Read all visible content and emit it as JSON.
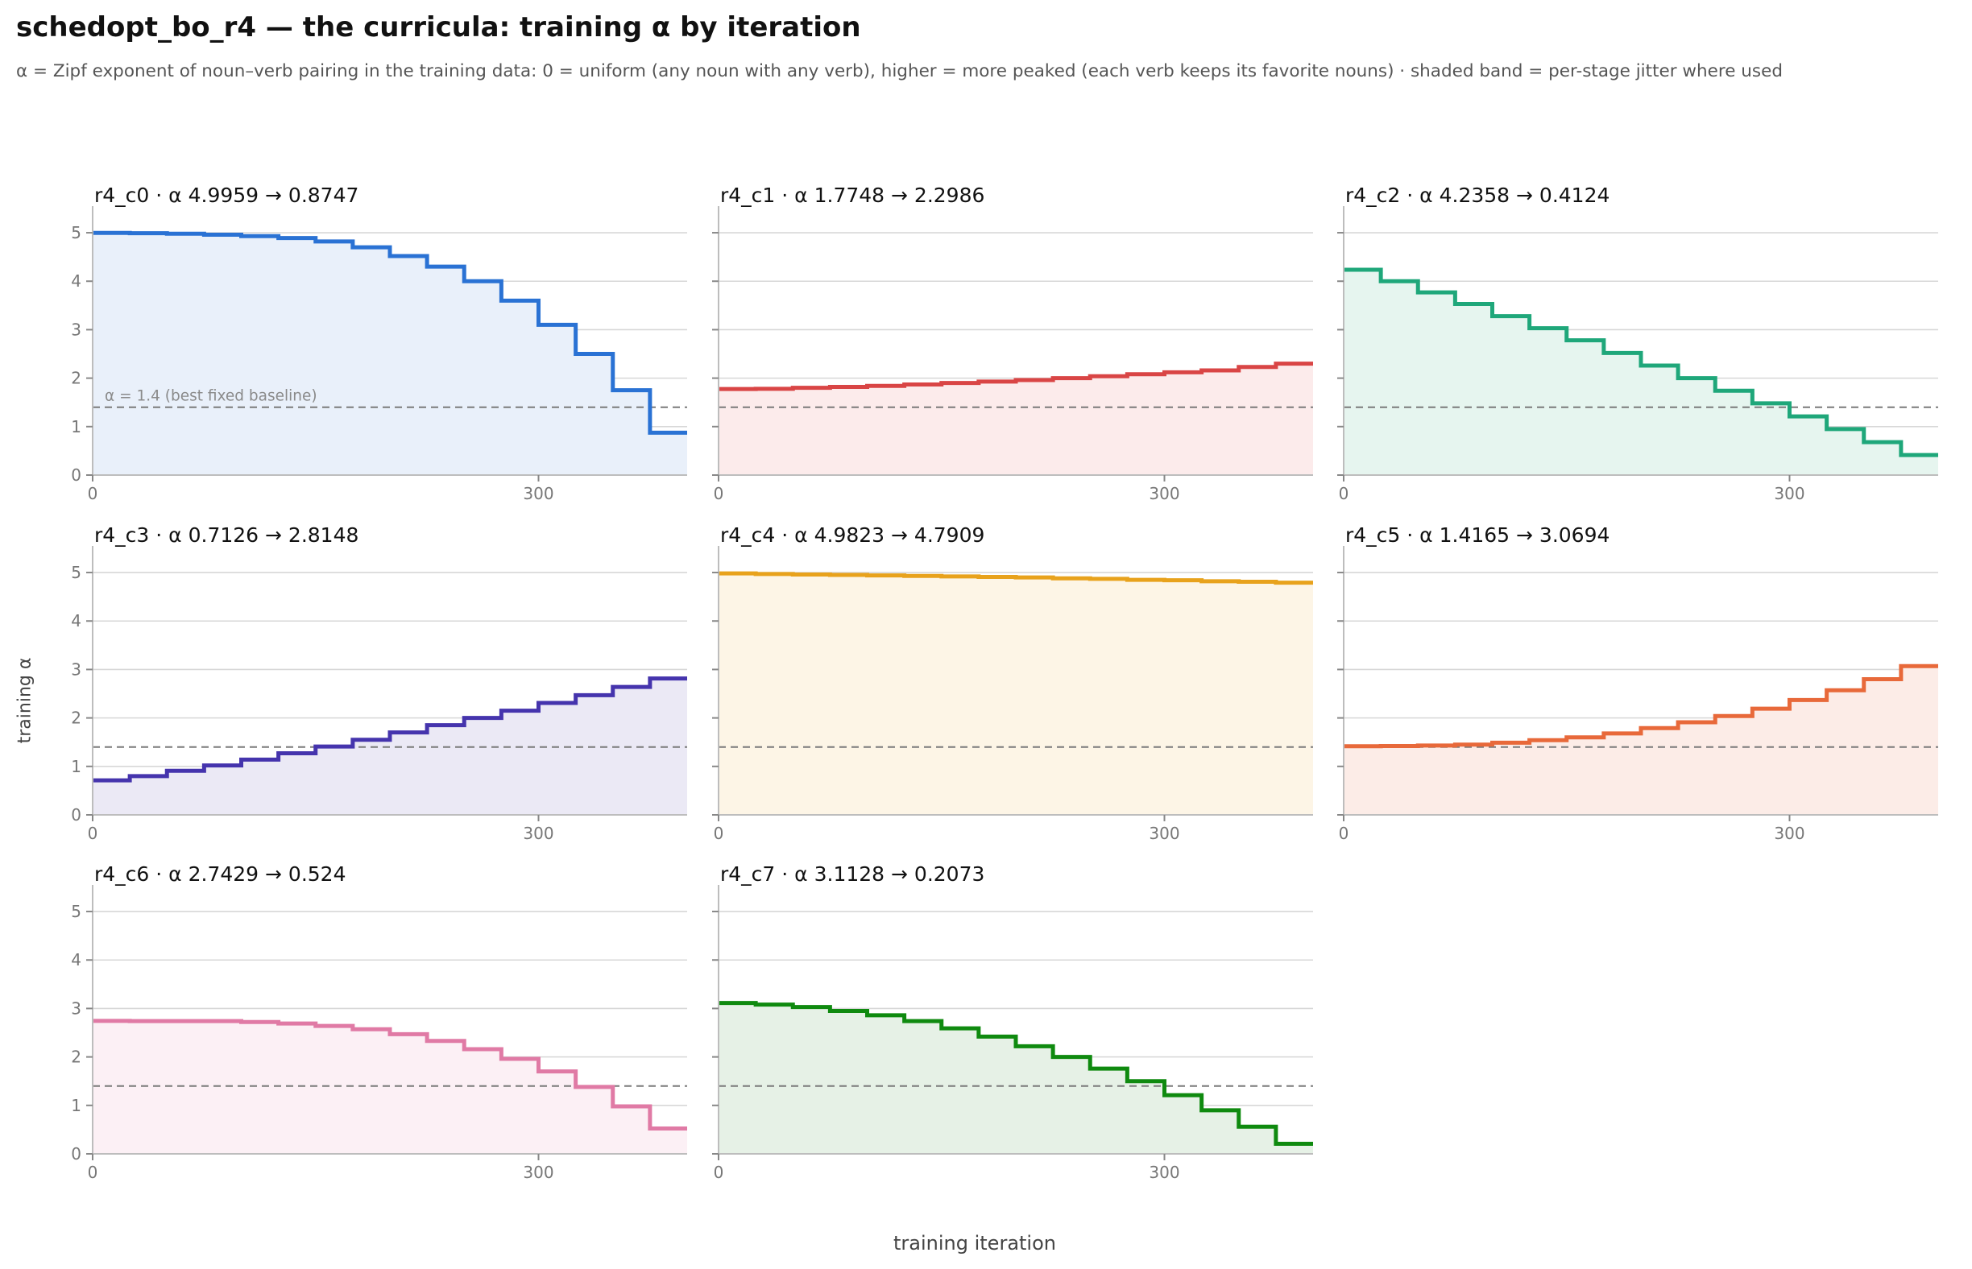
{
  "title": "schedopt_bo_r4 — the curricula: training α by iteration",
  "subtitle": "α = Zipf exponent of noun–verb pairing in the training data: 0 = uniform (any noun with any verb), higher = more peaked (each verb keeps its favorite nouns) · shaded band = per-stage jitter where used",
  "xlabel": "training iteration",
  "ylabel": "training α",
  "baseline": {
    "value": 1.4,
    "label": "α = 1.4 (best fixed baseline)"
  },
  "chart_data": [
    {
      "type": "line",
      "name": "r4_c0",
      "title": "r4_c0   ·   α 4.9959 → 0.8747",
      "color": "#2a72d4",
      "fill": "#e9f0fa",
      "x": [
        0,
        25,
        50,
        75,
        100,
        125,
        150,
        175,
        200,
        225,
        250,
        275,
        300,
        325,
        350,
        375
      ],
      "y": [
        4.9959,
        4.99,
        4.98,
        4.96,
        4.93,
        4.89,
        4.82,
        4.7,
        4.52,
        4.3,
        4.0,
        3.6,
        3.1,
        2.5,
        1.75,
        0.8747
      ]
    },
    {
      "type": "line",
      "name": "r4_c1",
      "title": "r4_c1   ·   α 1.7748 → 2.2986",
      "color": "#d94545",
      "fill": "#fcebeb",
      "x": [
        0,
        25,
        50,
        75,
        100,
        125,
        150,
        175,
        200,
        225,
        250,
        275,
        300,
        325,
        350,
        375
      ],
      "y": [
        1.7748,
        1.78,
        1.8,
        1.82,
        1.84,
        1.87,
        1.9,
        1.93,
        1.96,
        2.0,
        2.04,
        2.08,
        2.12,
        2.16,
        2.23,
        2.2986
      ]
    },
    {
      "type": "line",
      "name": "r4_c2",
      "title": "r4_c2   ·   α 4.2358 → 0.4124",
      "color": "#1fa77a",
      "fill": "#e6f5ef",
      "x": [
        0,
        25,
        50,
        75,
        100,
        125,
        150,
        175,
        200,
        225,
        250,
        275,
        300,
        325,
        350,
        375
      ],
      "y": [
        4.2358,
        4.0,
        3.77,
        3.53,
        3.28,
        3.03,
        2.78,
        2.52,
        2.26,
        2.0,
        1.74,
        1.48,
        1.21,
        0.95,
        0.68,
        0.4124
      ]
    },
    {
      "type": "line",
      "name": "r4_c3",
      "title": "r4_c3   ·   α 0.7126 → 2.8148",
      "color": "#4534ad",
      "fill": "#ebe9f5",
      "x": [
        0,
        25,
        50,
        75,
        100,
        125,
        150,
        175,
        200,
        225,
        250,
        275,
        300,
        325,
        350,
        375
      ],
      "y": [
        0.7126,
        0.8,
        0.91,
        1.02,
        1.14,
        1.27,
        1.41,
        1.55,
        1.7,
        1.85,
        2.0,
        2.15,
        2.31,
        2.47,
        2.64,
        2.8148
      ]
    },
    {
      "type": "line",
      "name": "r4_c4",
      "title": "r4_c4   ·   α 4.9823 → 4.7909",
      "color": "#e8a21c",
      "fill": "#fdf5e6",
      "x": [
        0,
        25,
        50,
        75,
        100,
        125,
        150,
        175,
        200,
        225,
        250,
        275,
        300,
        325,
        350,
        375
      ],
      "y": [
        4.9823,
        4.97,
        4.96,
        4.95,
        4.94,
        4.93,
        4.92,
        4.91,
        4.9,
        4.88,
        4.87,
        4.85,
        4.84,
        4.82,
        4.81,
        4.7909
      ]
    },
    {
      "type": "line",
      "name": "r4_c5",
      "title": "r4_c5   ·   α 1.4165 → 3.0694",
      "color": "#e8693a",
      "fill": "#fcece7",
      "x": [
        0,
        25,
        50,
        75,
        100,
        125,
        150,
        175,
        200,
        225,
        250,
        275,
        300,
        325,
        350,
        375
      ],
      "y": [
        1.4165,
        1.42,
        1.43,
        1.45,
        1.49,
        1.54,
        1.6,
        1.68,
        1.79,
        1.91,
        2.04,
        2.19,
        2.37,
        2.57,
        2.8,
        3.0694
      ]
    },
    {
      "type": "line",
      "name": "r4_c6",
      "title": "r4_c6   ·   α 2.7429 → 0.524",
      "color": "#e07aa5",
      "fill": "#fcf0f5",
      "x": [
        0,
        25,
        50,
        75,
        100,
        125,
        150,
        175,
        200,
        225,
        250,
        275,
        300,
        325,
        350,
        375
      ],
      "y": [
        2.7429,
        2.74,
        2.74,
        2.74,
        2.72,
        2.69,
        2.64,
        2.57,
        2.47,
        2.33,
        2.16,
        1.96,
        1.7,
        1.38,
        0.98,
        0.524
      ]
    },
    {
      "type": "line",
      "name": "r4_c7",
      "title": "r4_c7   ·   α 3.1128 → 0.2073",
      "color": "#0f8a0f",
      "fill": "#e6f1e6",
      "x": [
        0,
        25,
        50,
        75,
        100,
        125,
        150,
        175,
        200,
        225,
        250,
        275,
        300,
        325,
        350,
        375
      ],
      "y": [
        3.1128,
        3.08,
        3.03,
        2.95,
        2.86,
        2.74,
        2.59,
        2.42,
        2.22,
        2.0,
        1.76,
        1.5,
        1.21,
        0.9,
        0.56,
        0.2073
      ]
    }
  ],
  "axes": {
    "xlim": [
      0,
      400
    ],
    "ylim": [
      0,
      5.25
    ],
    "xticks": [
      0,
      300
    ],
    "yticks": [
      0,
      1,
      2,
      3,
      4,
      5
    ]
  }
}
